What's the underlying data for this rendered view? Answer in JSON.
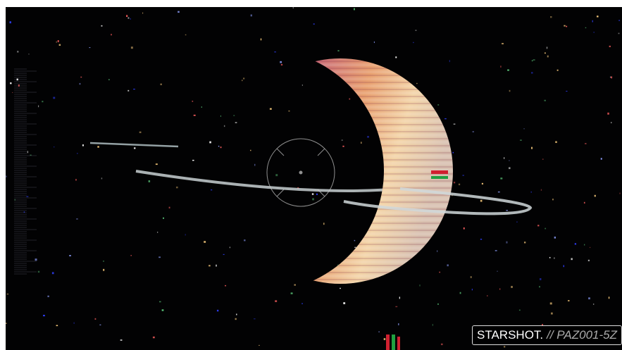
{
  "badge": {
    "brand": "STARSHOT.",
    "code": "// PAZ001-5Z"
  }
}
